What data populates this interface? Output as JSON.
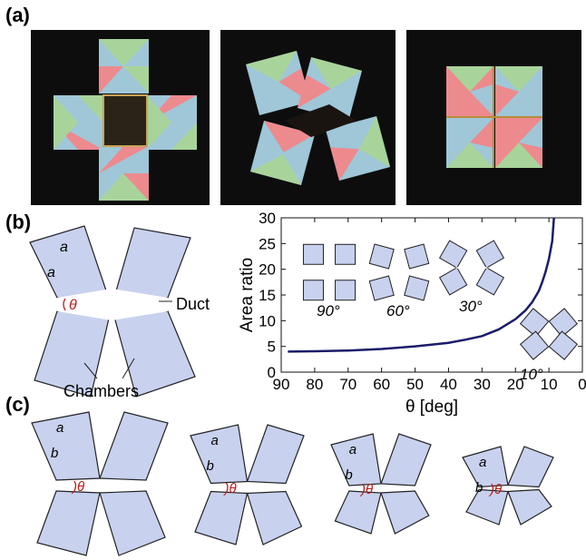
{
  "panels": {
    "a": {
      "label": "(a)"
    },
    "b": {
      "label": "(b)"
    },
    "c": {
      "label": "(c)"
    }
  },
  "photos": [
    {
      "name": "origami-cross-open"
    },
    {
      "name": "origami-partially-folded"
    },
    {
      "name": "origami-folded-square"
    }
  ],
  "colors": {
    "chamber_fill": "#c8d1ee",
    "chamber_stroke": "#222222",
    "angle": "#b81b1b",
    "curve": "#1c1c6b",
    "paper_blue": "#9fc7d8",
    "paper_green": "#a8d49b",
    "paper_pink": "#ec8a8e"
  },
  "diagram_b": {
    "side_label": "a",
    "angle_label": "θ",
    "duct_label": "Duct",
    "chambers_label": "Chambers"
  },
  "chart_data": {
    "type": "line",
    "xlabel": "θ [deg]",
    "ylabel": "Area ratio",
    "xlim": [
      90,
      0
    ],
    "ylim": [
      0,
      30
    ],
    "x_ticks": [
      90,
      80,
      70,
      60,
      50,
      40,
      30,
      20,
      10,
      0
    ],
    "y_ticks": [
      0,
      5,
      10,
      15,
      20,
      25,
      30
    ],
    "series": [
      {
        "x": [
          88,
          80,
          70,
          60,
          50,
          40,
          35,
          30,
          25,
          20,
          17,
          15,
          13,
          12,
          11,
          10,
          9,
          8.5
        ],
        "y": [
          4.0,
          4.05,
          4.2,
          4.5,
          5.0,
          5.7,
          6.3,
          7.0,
          8.3,
          10.3,
          12.0,
          13.6,
          15.8,
          17.5,
          19.5,
          22.0,
          25.5,
          30.0
        ]
      }
    ],
    "insets": [
      {
        "label": "90°",
        "angle": 90
      },
      {
        "label": "60°",
        "angle": 60
      },
      {
        "label": "30°",
        "angle": 30
      },
      {
        "label": "10°",
        "angle": 10
      }
    ]
  },
  "diagram_c": [
    {
      "a": "a",
      "b": "b",
      "theta": "θ"
    },
    {
      "a": "a",
      "b": "b",
      "theta": "θ"
    },
    {
      "a": "a",
      "b": "b",
      "theta": "θ"
    },
    {
      "a": "a",
      "b": "b",
      "theta": "θ"
    }
  ]
}
